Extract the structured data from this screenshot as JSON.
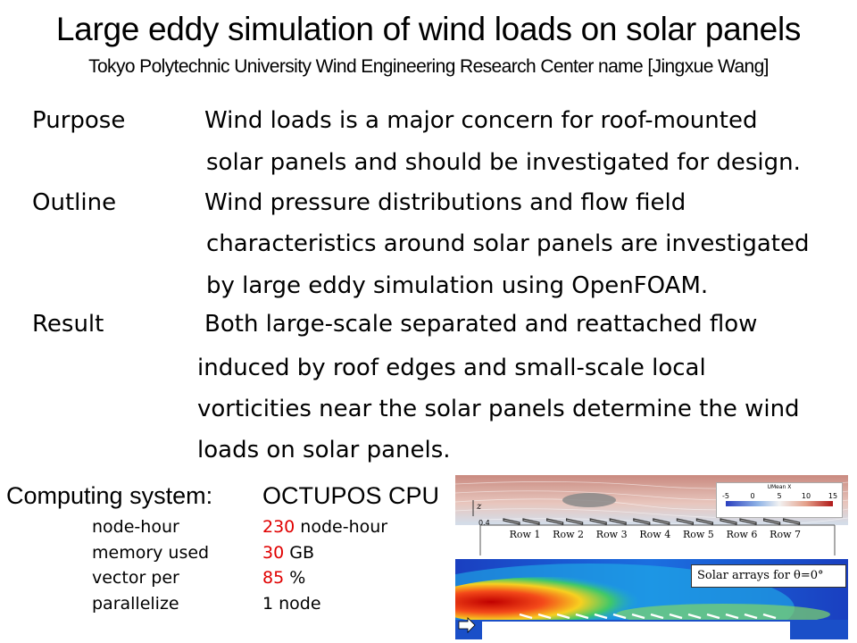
{
  "title": "Large eddy simulation of wind loads on solar panels",
  "affiliation": "Tokyo Polytechnic University Wind Engineering Research Center  name [Jingxue Wang]",
  "sections": {
    "purpose": {
      "label": "Purpose",
      "lines": [
        "Wind loads is a major concern for roof-mounted",
        "solar panels and should be investigated for design."
      ]
    },
    "outline": {
      "label": "Outline",
      "lines": [
        "Wind pressure distributions and flow field",
        "characteristics around solar panels are investigated",
        "by large eddy simulation using OpenFOAM."
      ]
    },
    "result": {
      "label": "Result",
      "lines": [
        "Both large-scale separated and reattached flow",
        "induced by roof edges and small-scale local",
        "vorticities near the solar panels determine the wind",
        "loads on solar panels."
      ]
    }
  },
  "computing": {
    "label": "Computing system:",
    "system": "OCTUPOS CPU",
    "stats": [
      {
        "name": "node-hour",
        "value": "230",
        "unit": " node-hour",
        "highlight": true
      },
      {
        "name": "memory used",
        "value": "30",
        "unit": " GB",
        "highlight": true
      },
      {
        "name": "vector per",
        "value": "85",
        "unit": " %",
        "highlight": true
      },
      {
        "name": "parallelize",
        "value": "1 node",
        "unit": "",
        "highlight": false
      }
    ]
  },
  "figure_top": {
    "colorbar_title": "UMean X",
    "colorbar_ticks": [
      "-5",
      "0",
      "5",
      "10",
      "15"
    ],
    "axis_label": "z",
    "axis_tick": "0.4",
    "rows": [
      "Row 1",
      "Row 2",
      "Row 3",
      "Row 4",
      "Row 5",
      "Row 6",
      "Row 7"
    ]
  },
  "figure_bottom": {
    "legend": "Solar arrays for θ=0°"
  }
}
